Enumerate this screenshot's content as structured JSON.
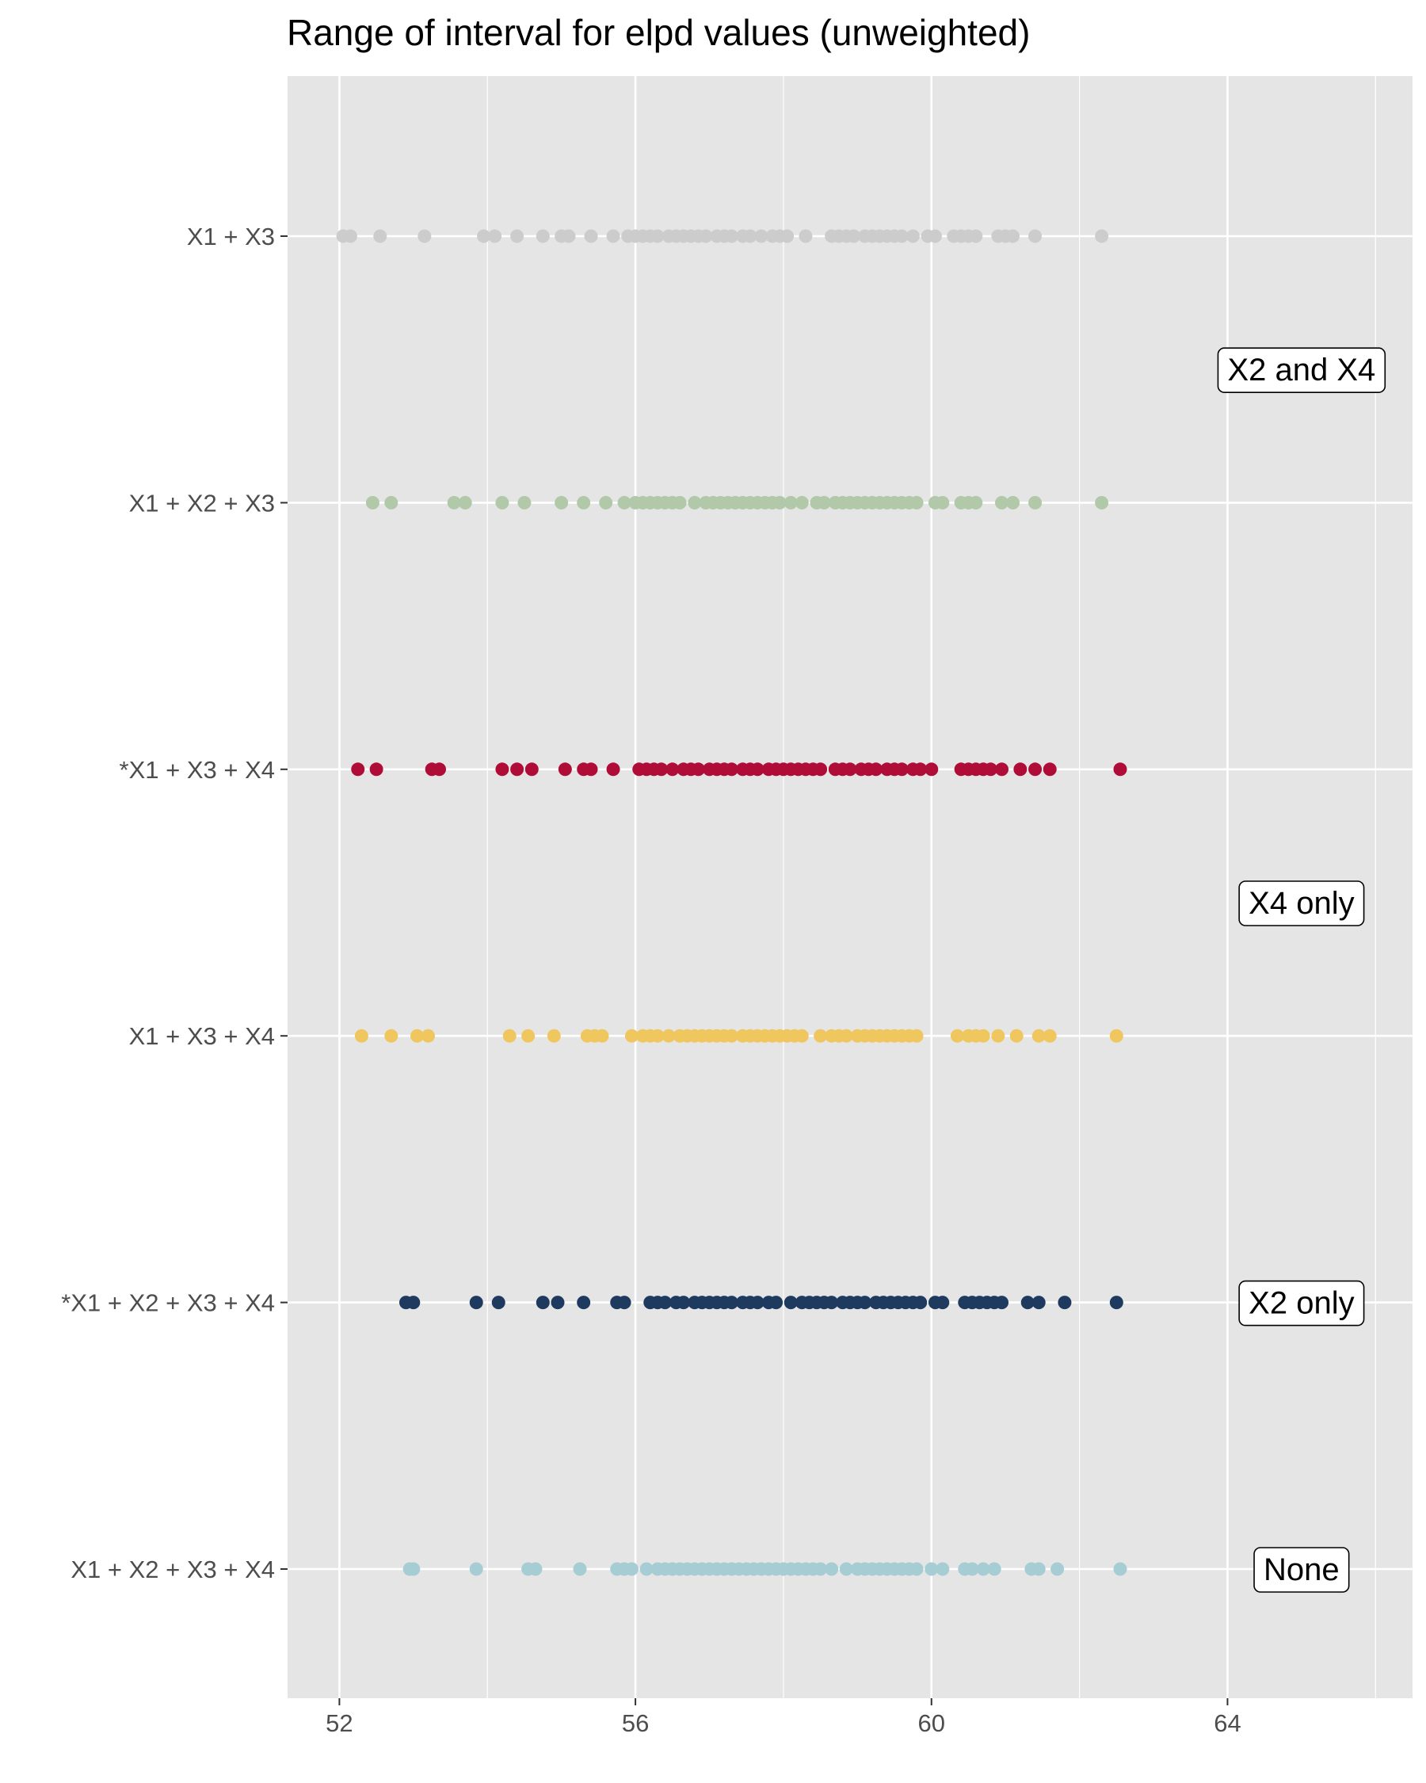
{
  "chart_data": {
    "type": "scatter",
    "title": "Range of interval for elpd values (unweighted)",
    "xlabel": "",
    "ylabel": "",
    "xlim": [
      51.3,
      66.5
    ],
    "x_ticks": [
      52,
      56,
      60,
      64
    ],
    "x_tick_labels": [
      "52",
      "56",
      "60",
      "64"
    ],
    "grid": true,
    "legend": "none",
    "categories": [
      "X1 + X3",
      "X1 + X2 + X3",
      "*X1 + X3 + X4",
      "X1 + X3 + X4",
      "*X1 + X2 + X3 + X4",
      "X1 + X2 + X3 + X4"
    ],
    "series": [
      {
        "category": "X1 + X3",
        "color": "#cccccc",
        "x": [
          52.05,
          52.15,
          52.55,
          53.15,
          53.95,
          54.1,
          54.4,
          54.75,
          55.0,
          55.1,
          55.4,
          55.7,
          55.9,
          56.0,
          56.1,
          56.2,
          56.3,
          56.45,
          56.55,
          56.65,
          56.75,
          56.85,
          56.95,
          57.1,
          57.2,
          57.3,
          57.45,
          57.55,
          57.7,
          57.85,
          57.95,
          58.05,
          58.3,
          58.65,
          58.75,
          58.85,
          58.95,
          59.1,
          59.2,
          59.3,
          59.4,
          59.5,
          59.6,
          59.75,
          59.95,
          60.05,
          60.3,
          60.4,
          60.5,
          60.6,
          60.9,
          61.0,
          61.1,
          61.4,
          62.3
        ]
      },
      {
        "category": "X1 + X2 + X3",
        "color": "#b2c9a9",
        "x": [
          52.45,
          52.7,
          53.55,
          53.7,
          54.2,
          54.5,
          55.0,
          55.3,
          55.6,
          55.85,
          56.0,
          56.1,
          56.2,
          56.3,
          56.4,
          56.5,
          56.6,
          56.8,
          56.95,
          57.05,
          57.15,
          57.25,
          57.35,
          57.45,
          57.55,
          57.65,
          57.75,
          57.85,
          57.95,
          58.1,
          58.25,
          58.45,
          58.55,
          58.7,
          58.8,
          58.9,
          59.0,
          59.1,
          59.2,
          59.3,
          59.4,
          59.5,
          59.6,
          59.7,
          59.8,
          60.05,
          60.15,
          60.4,
          60.5,
          60.6,
          60.95,
          61.1,
          61.4,
          62.3
        ]
      },
      {
        "category": "*X1 + X3 + X4",
        "color": "#b00c38",
        "x": [
          52.25,
          52.5,
          53.25,
          53.35,
          54.2,
          54.4,
          54.6,
          55.05,
          55.3,
          55.4,
          55.7,
          56.05,
          56.15,
          56.25,
          56.35,
          56.5,
          56.65,
          56.75,
          56.85,
          57.0,
          57.1,
          57.2,
          57.3,
          57.45,
          57.55,
          57.65,
          57.8,
          57.9,
          58.0,
          58.1,
          58.2,
          58.3,
          58.4,
          58.5,
          58.7,
          58.8,
          58.9,
          59.05,
          59.15,
          59.25,
          59.4,
          59.5,
          59.6,
          59.75,
          59.85,
          60.0,
          60.4,
          60.5,
          60.6,
          60.7,
          60.8,
          60.95,
          61.2,
          61.4,
          61.6,
          62.55
        ]
      },
      {
        "category": "X1 + X3 + X4",
        "color": "#efc75e",
        "x": [
          52.3,
          52.7,
          53.05,
          53.2,
          54.3,
          54.55,
          54.9,
          55.35,
          55.45,
          55.55,
          55.95,
          56.1,
          56.2,
          56.3,
          56.45,
          56.6,
          56.7,
          56.8,
          56.9,
          57.0,
          57.1,
          57.2,
          57.3,
          57.45,
          57.55,
          57.65,
          57.75,
          57.85,
          57.95,
          58.05,
          58.15,
          58.25,
          58.5,
          58.65,
          58.75,
          58.85,
          59.0,
          59.1,
          59.2,
          59.3,
          59.4,
          59.5,
          59.6,
          59.7,
          59.8,
          60.35,
          60.5,
          60.6,
          60.7,
          60.9,
          61.15,
          61.45,
          61.6,
          62.5
        ]
      },
      {
        "category": "*X1 + X2 + X3 + X4",
        "color": "#1f3a5f",
        "x": [
          52.9,
          53.0,
          53.85,
          54.15,
          54.75,
          54.95,
          55.3,
          55.75,
          55.85,
          56.2,
          56.3,
          56.4,
          56.55,
          56.65,
          56.8,
          56.9,
          57.0,
          57.1,
          57.2,
          57.3,
          57.45,
          57.55,
          57.65,
          57.8,
          57.9,
          58.1,
          58.25,
          58.35,
          58.45,
          58.55,
          58.65,
          58.8,
          58.9,
          59.0,
          59.1,
          59.25,
          59.35,
          59.45,
          59.55,
          59.65,
          59.75,
          59.85,
          60.05,
          60.15,
          60.45,
          60.55,
          60.65,
          60.75,
          60.85,
          60.95,
          61.3,
          61.45,
          61.8,
          62.5
        ]
      },
      {
        "category": "X1 + X2 + X3 + X4",
        "color": "#a6cdd3",
        "x": [
          52.95,
          53.0,
          53.85,
          54.55,
          54.65,
          55.25,
          55.75,
          55.85,
          55.95,
          56.15,
          56.3,
          56.4,
          56.5,
          56.6,
          56.7,
          56.8,
          56.9,
          57.0,
          57.1,
          57.2,
          57.3,
          57.4,
          57.5,
          57.6,
          57.7,
          57.8,
          57.9,
          58.0,
          58.1,
          58.2,
          58.3,
          58.4,
          58.5,
          58.65,
          58.85,
          59.0,
          59.1,
          59.2,
          59.3,
          59.4,
          59.5,
          59.6,
          59.7,
          59.8,
          60.0,
          60.15,
          60.45,
          60.55,
          60.7,
          60.85,
          61.35,
          61.45,
          61.7,
          62.55
        ]
      }
    ],
    "annotations": [
      {
        "text": "X2 and X4",
        "x": 65.0,
        "y_between": [
          "X1 + X3",
          "X1 + X2 + X3"
        ]
      },
      {
        "text": "X4 only",
        "x": 65.0,
        "y_between": [
          "*X1 + X3 + X4",
          "X1 + X3 + X4"
        ]
      },
      {
        "text": "X2 only",
        "x": 65.0,
        "y_at": "*X1 + X2 + X3 + X4"
      },
      {
        "text": "None",
        "x": 65.0,
        "y_at": "X1 + X2 + X3 + X4"
      }
    ]
  },
  "style": {
    "panel_background": "#e5e5e5",
    "grid_major": "#ffffff",
    "tick_color": "#333333",
    "annotation_fill": "#ffffff",
    "annotation_border": "#000000"
  }
}
